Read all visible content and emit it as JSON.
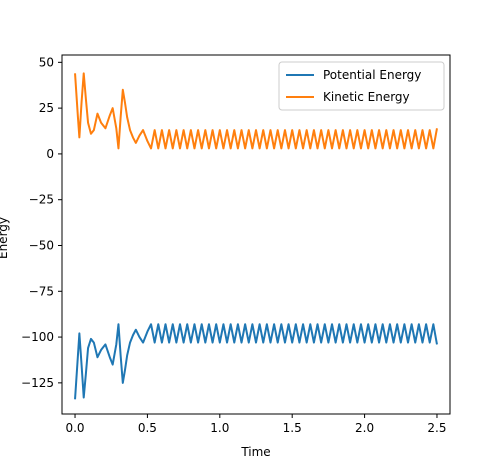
{
  "chart_data": {
    "type": "line",
    "title": "",
    "xlabel": "Time",
    "ylabel": "Energy",
    "xlim": [
      -0.09,
      2.59
    ],
    "ylim": [
      -142,
      54
    ],
    "xticks": [
      0.0,
      0.5,
      1.0,
      1.5,
      2.0,
      2.5
    ],
    "xtick_labels": [
      "0.0",
      "0.5",
      "1.0",
      "1.5",
      "2.0",
      "2.5"
    ],
    "yticks": [
      50,
      25,
      0,
      -25,
      -50,
      -75,
      -100,
      -125
    ],
    "ytick_labels": [
      "50",
      "25",
      "0",
      "−25",
      "−50",
      "−75",
      "−100",
      "−125"
    ],
    "grid": false,
    "legend_position": "upper right",
    "series": [
      {
        "name": "Potential Energy",
        "color": "#1f77b4",
        "x": [
          0.0,
          0.02,
          0.03,
          0.045,
          0.06,
          0.075,
          0.09,
          0.11,
          0.13,
          0.155,
          0.18,
          0.21,
          0.24,
          0.26,
          0.285,
          0.3,
          0.315,
          0.33,
          0.345,
          0.36,
          0.38,
          0.4,
          0.42,
          0.445,
          0.47,
          0.5,
          0.525,
          0.55,
          0.575,
          0.6,
          0.625,
          0.65,
          0.675,
          0.7,
          0.725,
          0.75,
          0.775,
          0.8,
          0.825,
          0.85,
          0.875,
          0.9,
          0.925,
          0.95,
          0.975,
          1.0,
          1.025,
          1.05,
          1.075,
          1.1,
          1.125,
          1.15,
          1.175,
          1.2,
          1.225,
          1.25,
          1.275,
          1.3,
          1.325,
          1.35,
          1.375,
          1.4,
          1.425,
          1.45,
          1.475,
          1.5,
          1.525,
          1.55,
          1.575,
          1.6,
          1.625,
          1.65,
          1.675,
          1.7,
          1.725,
          1.75,
          1.775,
          1.8,
          1.825,
          1.85,
          1.875,
          1.9,
          1.925,
          1.95,
          1.975,
          2.0,
          2.025,
          2.05,
          2.075,
          2.1,
          2.125,
          2.15,
          2.175,
          2.2,
          2.225,
          2.25,
          2.275,
          2.3,
          2.325,
          2.35,
          2.375,
          2.4,
          2.425,
          2.45,
          2.475,
          2.5
        ],
        "y": [
          -134,
          -110,
          -98,
          -115,
          -133,
          -120,
          -106,
          -101,
          -103,
          -111,
          -107,
          -104,
          -111,
          -115,
          -104,
          -93,
          -110,
          -125,
          -118,
          -110,
          -103,
          -99,
          -96,
          -100,
          -103,
          -97,
          -93,
          -103,
          -93,
          -103,
          -93,
          -103,
          -93,
          -103,
          -93,
          -103,
          -93,
          -103,
          -93,
          -103,
          -93,
          -103,
          -93,
          -103,
          -93,
          -103,
          -93,
          -103,
          -93,
          -103,
          -93,
          -103,
          -93,
          -103,
          -93,
          -103,
          -93,
          -103,
          -93,
          -103,
          -93,
          -103,
          -93,
          -103,
          -93,
          -103,
          -93,
          -103,
          -93,
          -103,
          -93,
          -103,
          -93,
          -103,
          -93,
          -103,
          -93,
          -103,
          -93,
          -103,
          -93,
          -103,
          -93,
          -103,
          -93,
          -103,
          -93,
          -103,
          -93,
          -103,
          -93,
          -103,
          -93,
          -103,
          -93,
          -103,
          -93,
          -103,
          -93,
          -103,
          -93,
          -103,
          -93,
          -103,
          -93,
          -104
        ]
      },
      {
        "name": "Kinetic Energy",
        "color": "#ff7f0e",
        "x": [
          0.0,
          0.02,
          0.03,
          0.045,
          0.06,
          0.075,
          0.09,
          0.11,
          0.13,
          0.155,
          0.18,
          0.21,
          0.24,
          0.26,
          0.285,
          0.3,
          0.315,
          0.33,
          0.345,
          0.36,
          0.38,
          0.4,
          0.42,
          0.445,
          0.47,
          0.5,
          0.525,
          0.55,
          0.575,
          0.6,
          0.625,
          0.65,
          0.675,
          0.7,
          0.725,
          0.75,
          0.775,
          0.8,
          0.825,
          0.85,
          0.875,
          0.9,
          0.925,
          0.95,
          0.975,
          1.0,
          1.025,
          1.05,
          1.075,
          1.1,
          1.125,
          1.15,
          1.175,
          1.2,
          1.225,
          1.25,
          1.275,
          1.3,
          1.325,
          1.35,
          1.375,
          1.4,
          1.425,
          1.45,
          1.475,
          1.5,
          1.525,
          1.55,
          1.575,
          1.6,
          1.625,
          1.65,
          1.675,
          1.7,
          1.725,
          1.75,
          1.775,
          1.8,
          1.825,
          1.85,
          1.875,
          1.9,
          1.925,
          1.95,
          1.975,
          2.0,
          2.025,
          2.05,
          2.075,
          2.1,
          2.125,
          2.15,
          2.175,
          2.2,
          2.225,
          2.25,
          2.275,
          2.3,
          2.325,
          2.35,
          2.375,
          2.4,
          2.425,
          2.45,
          2.475,
          2.5
        ],
        "y": [
          44,
          20,
          9,
          28,
          44,
          30,
          17,
          11,
          13,
          22,
          17,
          14,
          21,
          25,
          14,
          3,
          20,
          35,
          28,
          20,
          13,
          9,
          6,
          10,
          13,
          7,
          3,
          13,
          3,
          13,
          3,
          13,
          3,
          13,
          3,
          13,
          3,
          13,
          3,
          13,
          3,
          13,
          3,
          13,
          3,
          13,
          3,
          13,
          3,
          13,
          3,
          13,
          3,
          13,
          3,
          13,
          3,
          13,
          3,
          13,
          3,
          13,
          3,
          13,
          3,
          13,
          3,
          13,
          3,
          13,
          3,
          13,
          3,
          13,
          3,
          13,
          3,
          13,
          3,
          13,
          3,
          13,
          3,
          13,
          3,
          13,
          3,
          13,
          3,
          13,
          3,
          13,
          3,
          13,
          3,
          13,
          3,
          13,
          3,
          13,
          3,
          13,
          3,
          13,
          3,
          14
        ]
      }
    ]
  }
}
